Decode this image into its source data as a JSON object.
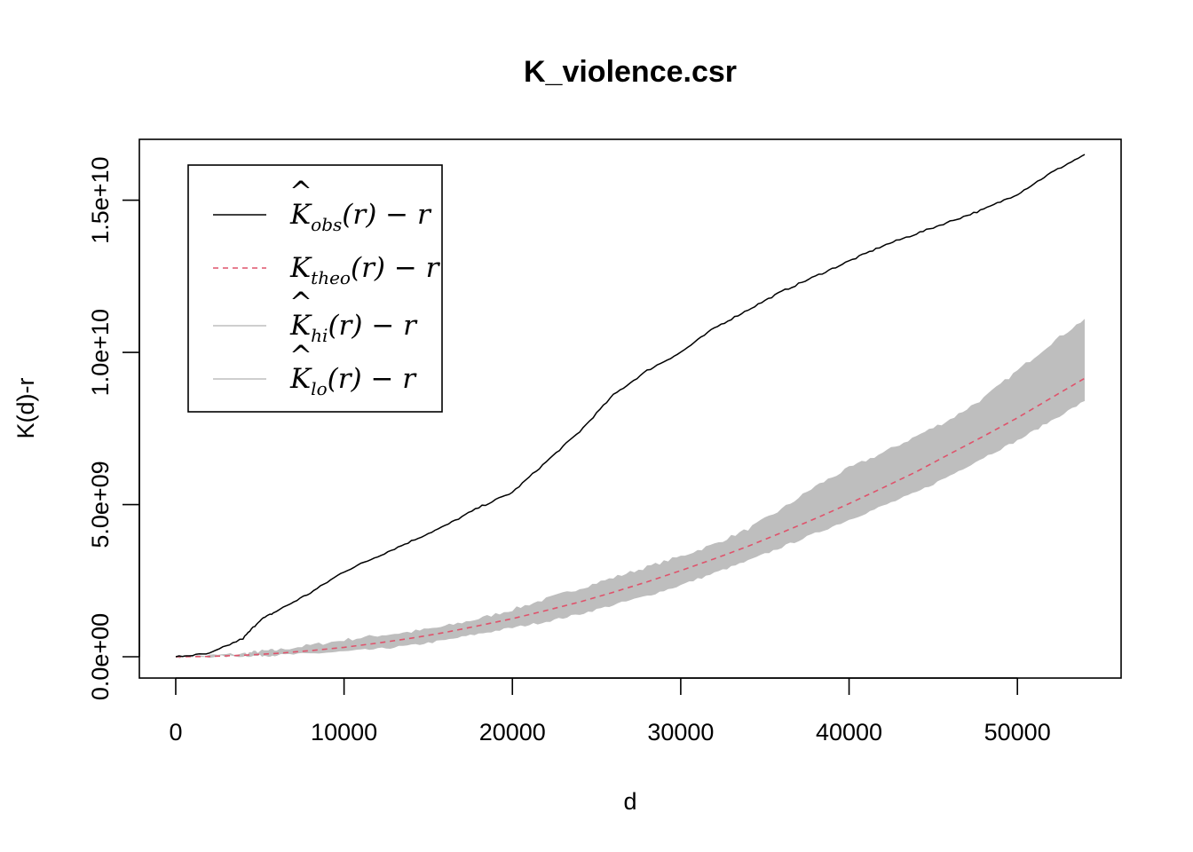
{
  "chart_data": {
    "type": "line",
    "title": "K_violence.csr",
    "xlabel": "d",
    "ylabel": "K(d)-r",
    "xlim": [
      -2160,
      56160
    ],
    "ylim": [
      -700000000,
      17000000000
    ],
    "xticks": [
      0,
      10000,
      20000,
      30000,
      40000,
      50000
    ],
    "xtick_labels": [
      "0",
      "10000",
      "20000",
      "30000",
      "40000",
      "50000"
    ],
    "yticks": [
      0,
      5000000000,
      10000000000,
      15000000000
    ],
    "ytick_labels": [
      "0.0e+00",
      "5.0e+09",
      "1.0e+10",
      "1.5e+10"
    ],
    "grid": false,
    "legend_position": "top-left",
    "legend": [
      {
        "base": "K",
        "hat": "^",
        "sub": "obs",
        "tail": "(r) − r",
        "color": "#000000",
        "style": "solid"
      },
      {
        "base": "K",
        "hat": "",
        "sub": "theo",
        "tail": "(r) − r",
        "color": "#DF536B",
        "style": "dashed"
      },
      {
        "base": "K",
        "hat": "^",
        "sub": "hi",
        "tail": "(r) − r",
        "color": "#BEBEBE",
        "style": "solid"
      },
      {
        "base": "K",
        "hat": "^",
        "sub": "lo",
        "tail": "(r) − r",
        "color": "#BEBEBE",
        "style": "solid"
      }
    ],
    "x": [
      0,
      2000,
      4000,
      5000,
      6000,
      8000,
      10000,
      12000,
      14000,
      16000,
      18000,
      20000,
      22000,
      24000,
      26000,
      28000,
      30000,
      32000,
      34000,
      36000,
      38000,
      40000,
      42000,
      44000,
      46000,
      48000,
      50000,
      52000,
      54000
    ],
    "series": [
      {
        "key": "obs",
        "color": "#000000",
        "style": "solid",
        "values": [
          0,
          100000000,
          600000000,
          1200000000,
          1500000000,
          2100000000,
          2800000000,
          3300000000,
          3800000000,
          4300000000,
          4900000000,
          5400000000,
          6400000000,
          7400000000,
          8600000000,
          9400000000,
          10000000000,
          10800000000,
          11400000000,
          12000000000,
          12500000000,
          13000000000,
          13500000000,
          13900000000,
          14300000000,
          14700000000,
          15200000000,
          15900000000,
          16500000000
        ]
      },
      {
        "key": "theo",
        "color": "#DF536B",
        "style": "dashed",
        "values": [
          0,
          10000000,
          50000000,
          80000000,
          110000000,
          200000000,
          310000000,
          450000000,
          610000000,
          800000000,
          1020000000,
          1250000000,
          1520000000,
          1800000000,
          2120000000,
          2460000000,
          2830000000,
          3220000000,
          3630000000,
          4080000000,
          4540000000,
          5030000000,
          5550000000,
          6080000000,
          6670000000,
          7250000000,
          7850000000,
          8500000000,
          9150000000
        ]
      },
      {
        "key": "hi",
        "color": "#BEBEBE",
        "style": "band-upper",
        "values": [
          0,
          40000000,
          100000000,
          180000000,
          220000000,
          380000000,
          550000000,
          700000000,
          820000000,
          1000000000,
          1250000000,
          1550000000,
          1900000000,
          2250000000,
          2600000000,
          2950000000,
          3300000000,
          3700000000,
          4200000000,
          4850000000,
          5600000000,
          6200000000,
          6700000000,
          7250000000,
          7800000000,
          8500000000,
          9400000000,
          10300000000,
          11100000000
        ]
      },
      {
        "key": "lo",
        "color": "#BEBEBE",
        "style": "band-lower",
        "values": [
          0,
          0,
          20000000,
          30000000,
          50000000,
          100000000,
          170000000,
          250000000,
          370000000,
          540000000,
          750000000,
          950000000,
          1150000000,
          1400000000,
          1700000000,
          2000000000,
          2350000000,
          2750000000,
          3150000000,
          3600000000,
          4050000000,
          4500000000,
          4950000000,
          5400000000,
          5950000000,
          6550000000,
          7100000000,
          7750000000,
          8400000000
        ]
      }
    ]
  }
}
